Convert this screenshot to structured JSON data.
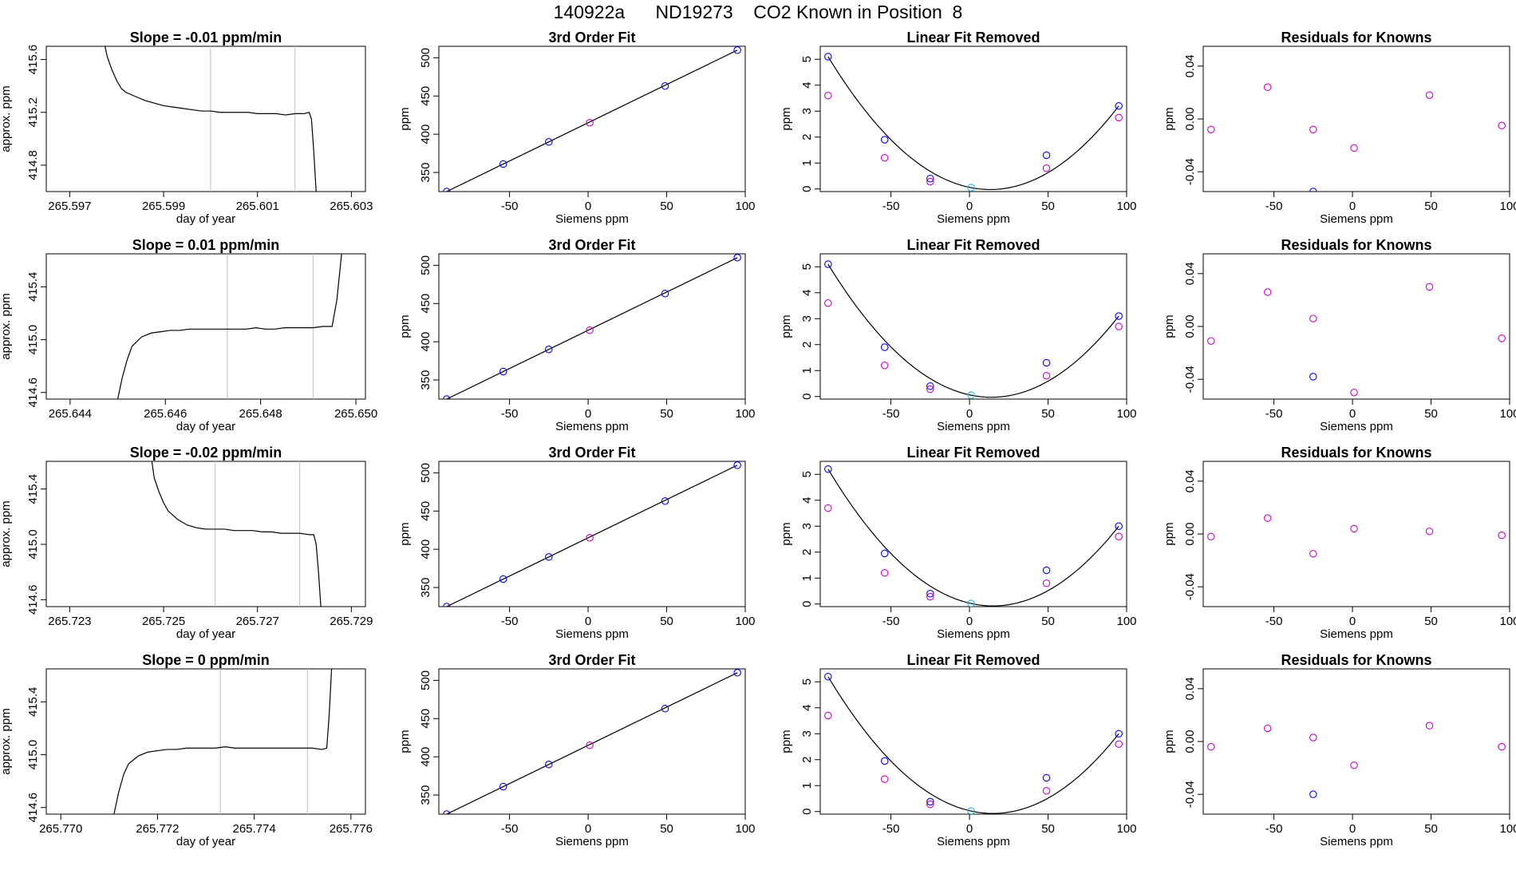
{
  "header": {
    "title": "140922a      ND19273    CO2 Known in Position  8"
  },
  "colors": {
    "blue": "#0000ff",
    "magenta": "#cc00cc",
    "cyan": "#1fb8e0",
    "red": "#ff0000",
    "line": "#000000",
    "vline": "#bebebe"
  },
  "chart_data": [
    {
      "id": "r1-trace",
      "type": "line",
      "title": "Slope =  -0.01  ppm/min",
      "xlabel": "day of year",
      "ylabel": "approx. ppm",
      "xlim": [
        265.5965,
        265.6033
      ],
      "ylim": [
        414.6,
        415.7
      ],
      "xticks": [
        265.597,
        265.599,
        265.601,
        265.603
      ],
      "xtick_labels": [
        "265.597",
        "265.599",
        "265.601",
        "265.603"
      ],
      "yticks": [
        414.8,
        415.2,
        415.6
      ],
      "ytick_labels": [
        "414.8",
        "415.2",
        "415.6"
      ],
      "vlines": [
        265.6,
        265.6018
      ],
      "x": [
        265.59775,
        265.5978,
        265.5979,
        265.598,
        265.5981,
        265.5982,
        265.5984,
        265.5986,
        265.5988,
        265.599,
        265.5992,
        265.5994,
        265.5996,
        265.5998,
        265.6,
        265.6002,
        265.6004,
        265.6006,
        265.6008,
        265.601,
        265.6012,
        265.6014,
        265.6016,
        265.6018,
        265.602,
        265.6021,
        265.60215,
        265.6022,
        265.60225
      ],
      "y": [
        415.7,
        415.62,
        415.52,
        415.44,
        415.38,
        415.35,
        415.32,
        415.29,
        415.27,
        415.25,
        415.24,
        415.23,
        415.22,
        415.21,
        415.21,
        415.2,
        415.2,
        415.2,
        415.2,
        415.19,
        415.19,
        415.19,
        415.18,
        415.19,
        415.19,
        415.2,
        415.15,
        414.9,
        414.6
      ]
    },
    {
      "id": "r1-fit",
      "type": "scatter",
      "title": "3rd Order Fit",
      "xlabel": "Siemens ppm",
      "ylabel": "ppm",
      "xlim": [
        -95,
        100
      ],
      "ylim": [
        325,
        515
      ],
      "xticks": [
        -50,
        0,
        50,
        100
      ],
      "xtick_labels": [
        "-50",
        "0",
        "50",
        "100"
      ],
      "yticks": [
        350,
        400,
        450,
        500
      ],
      "ytick_labels": [
        "350",
        "400",
        "450",
        "500"
      ],
      "x": [
        -90,
        -54,
        -25,
        1,
        49,
        95
      ],
      "y": [
        325,
        361,
        390,
        415,
        463,
        510
      ],
      "colors": [
        "blue",
        "blue",
        "blue",
        "magenta",
        "blue",
        "blue"
      ],
      "fit_line": true
    },
    {
      "id": "r1-linear",
      "type": "scatter",
      "title": "Linear Fit Removed",
      "xlabel": "Siemens ppm",
      "ylabel": "ppm",
      "xlim": [
        -95,
        100
      ],
      "ylim": [
        -0.1,
        5.5
      ],
      "xticks": [
        -50,
        0,
        50,
        100
      ],
      "xtick_labels": [
        "-50",
        "0",
        "50",
        "100"
      ],
      "yticks": [
        0,
        1,
        2,
        3,
        4,
        5
      ],
      "ytick_labels": [
        "0",
        "1",
        "2",
        "3",
        "4",
        "5"
      ],
      "x": [
        -90,
        -54,
        -25,
        1,
        49,
        95,
        -90,
        -54,
        -25,
        49,
        95
      ],
      "y": [
        5.1,
        1.9,
        0.4,
        0.05,
        1.3,
        3.2,
        3.6,
        1.2,
        0.28,
        0.8,
        2.75
      ],
      "colors": [
        "blue",
        "blue",
        "blue",
        "cyan",
        "blue",
        "blue",
        "magenta",
        "magenta",
        "magenta",
        "magenta",
        "magenta"
      ],
      "curve": true
    },
    {
      "id": "r1-resid",
      "type": "scatter",
      "title": "Residuals for Knowns",
      "xlabel": "Siemens ppm",
      "ylabel": "ppm",
      "xlim": [
        -95,
        100
      ],
      "ylim": [
        -0.055,
        0.055
      ],
      "xticks": [
        -50,
        0,
        50,
        100
      ],
      "xtick_labels": [
        "-50",
        "0",
        "50",
        "100"
      ],
      "yticks": [
        -0.04,
        0,
        0.04
      ],
      "ytick_labels": [
        "-0.04",
        "0.00",
        "0.04"
      ],
      "x": [
        -90,
        -54,
        -25,
        -25,
        1,
        49,
        95
      ],
      "y": [
        -0.008,
        0.024,
        -0.008,
        -0.055,
        -0.022,
        0.018,
        -0.005
      ],
      "colors": [
        "magenta",
        "magenta",
        "magenta",
        "blue",
        "magenta",
        "magenta",
        "magenta"
      ]
    },
    {
      "id": "r2-trace",
      "type": "line",
      "title": "Slope =  0.01  ppm/min",
      "xlabel": "day of year",
      "ylabel": "approx. ppm",
      "xlim": [
        265.6435,
        265.6502
      ],
      "ylim": [
        414.55,
        415.65
      ],
      "xticks": [
        265.644,
        265.646,
        265.648,
        265.65
      ],
      "xtick_labels": [
        "265.644",
        "265.646",
        "265.648",
        "265.650"
      ],
      "yticks": [
        414.6,
        415.0,
        415.4
      ],
      "ytick_labels": [
        "414.6",
        "415.0",
        "415.4"
      ],
      "vlines": [
        265.6473,
        265.6491
      ],
      "x": [
        265.645,
        265.6451,
        265.6452,
        265.6453,
        265.6455,
        265.6457,
        265.6459,
        265.6461,
        265.6463,
        265.6465,
        265.6467,
        265.6469,
        265.6471,
        265.6473,
        265.6475,
        265.6477,
        265.6479,
        265.6481,
        265.6483,
        265.6485,
        265.6487,
        265.6489,
        265.6491,
        265.6493,
        265.6495,
        265.6496,
        265.6497
      ],
      "y": [
        414.55,
        414.72,
        414.85,
        414.95,
        415.02,
        415.05,
        415.06,
        415.07,
        415.07,
        415.08,
        415.08,
        415.08,
        415.08,
        415.08,
        415.08,
        415.08,
        415.09,
        415.08,
        415.08,
        415.09,
        415.09,
        415.09,
        415.09,
        415.1,
        415.1,
        415.3,
        415.65
      ]
    },
    {
      "id": "r2-fit",
      "type": "scatter",
      "title": "3rd Order Fit",
      "xlabel": "Siemens ppm",
      "ylabel": "ppm",
      "xlim": [
        -95,
        100
      ],
      "ylim": [
        325,
        515
      ],
      "xticks": [
        -50,
        0,
        50,
        100
      ],
      "xtick_labels": [
        "-50",
        "0",
        "50",
        "100"
      ],
      "yticks": [
        350,
        400,
        450,
        500
      ],
      "ytick_labels": [
        "350",
        "400",
        "450",
        "500"
      ],
      "x": [
        -90,
        -54,
        -25,
        1,
        49,
        95
      ],
      "y": [
        325,
        361,
        390,
        415,
        463,
        510
      ],
      "colors": [
        "blue",
        "blue",
        "blue",
        "magenta",
        "blue",
        "blue"
      ],
      "fit_line": true
    },
    {
      "id": "r2-linear",
      "type": "scatter",
      "title": "Linear Fit Removed",
      "xlabel": "Siemens ppm",
      "ylabel": "ppm",
      "xlim": [
        -95,
        100
      ],
      "ylim": [
        -0.1,
        5.5
      ],
      "xticks": [
        -50,
        0,
        50,
        100
      ],
      "xtick_labels": [
        "-50",
        "0",
        "50",
        "100"
      ],
      "yticks": [
        0,
        1,
        2,
        3,
        4,
        5
      ],
      "ytick_labels": [
        "0",
        "1",
        "2",
        "3",
        "4",
        "5"
      ],
      "x": [
        -90,
        -54,
        -25,
        1,
        49,
        95,
        -90,
        -54,
        -25,
        49,
        95
      ],
      "y": [
        5.1,
        1.9,
        0.4,
        0.05,
        1.3,
        3.1,
        3.6,
        1.2,
        0.28,
        0.8,
        2.7
      ],
      "colors": [
        "blue",
        "blue",
        "blue",
        "cyan",
        "blue",
        "blue",
        "magenta",
        "magenta",
        "magenta",
        "magenta",
        "magenta"
      ],
      "curve": true
    },
    {
      "id": "r2-resid",
      "type": "scatter",
      "title": "Residuals for Knowns",
      "xlabel": "Siemens ppm",
      "ylabel": "ppm",
      "xlim": [
        -95,
        100
      ],
      "ylim": [
        -0.055,
        0.055
      ],
      "xticks": [
        -50,
        0,
        50,
        100
      ],
      "xtick_labels": [
        "-50",
        "0",
        "50",
        "100"
      ],
      "yticks": [
        -0.04,
        0,
        0.04
      ],
      "ytick_labels": [
        "-0.04",
        "0.00",
        "0.04"
      ],
      "x": [
        -90,
        -54,
        -25,
        -25,
        1,
        49,
        95
      ],
      "y": [
        -0.011,
        0.026,
        0.006,
        -0.038,
        -0.05,
        0.03,
        -0.009
      ],
      "colors": [
        "magenta",
        "magenta",
        "magenta",
        "blue",
        "magenta",
        "magenta",
        "magenta"
      ]
    },
    {
      "id": "r3-trace",
      "type": "line",
      "title": "Slope =  -0.02  ppm/min",
      "xlabel": "day of year",
      "ylabel": "approx. ppm",
      "xlim": [
        265.7225,
        265.7293
      ],
      "ylim": [
        414.55,
        415.6
      ],
      "xticks": [
        265.723,
        265.725,
        265.727,
        265.729
      ],
      "xtick_labels": [
        "265.723",
        "265.725",
        "265.727",
        "265.729"
      ],
      "yticks": [
        414.6,
        415.0,
        415.4
      ],
      "ytick_labels": [
        "414.6",
        "415.0",
        "415.4"
      ],
      "vlines": [
        265.7261,
        265.7279
      ],
      "x": [
        265.72475,
        265.7248,
        265.7249,
        265.725,
        265.7251,
        265.7253,
        265.7255,
        265.7257,
        265.7259,
        265.7261,
        265.7263,
        265.7265,
        265.7267,
        265.7269,
        265.7271,
        265.7273,
        265.7275,
        265.7277,
        265.7279,
        265.7281,
        265.7282,
        265.72825,
        265.7283,
        265.72835
      ],
      "y": [
        415.6,
        415.48,
        415.38,
        415.3,
        415.24,
        415.18,
        415.14,
        415.12,
        415.11,
        415.11,
        415.11,
        415.1,
        415.1,
        415.1,
        415.09,
        415.09,
        415.08,
        415.08,
        415.08,
        415.07,
        415.07,
        415.0,
        414.8,
        414.55
      ]
    },
    {
      "id": "r3-fit",
      "type": "scatter",
      "title": "3rd Order Fit",
      "xlabel": "Siemens ppm",
      "ylabel": "ppm",
      "xlim": [
        -95,
        100
      ],
      "ylim": [
        325,
        515
      ],
      "xticks": [
        -50,
        0,
        50,
        100
      ],
      "xtick_labels": [
        "-50",
        "0",
        "50",
        "100"
      ],
      "yticks": [
        350,
        400,
        450,
        500
      ],
      "ytick_labels": [
        "350",
        "400",
        "450",
        "500"
      ],
      "x": [
        -90,
        -54,
        -25,
        1,
        49,
        95
      ],
      "y": [
        325,
        361,
        390,
        415,
        463,
        510
      ],
      "colors": [
        "blue",
        "blue",
        "blue",
        "magenta",
        "blue",
        "blue"
      ],
      "fit_line": true
    },
    {
      "id": "r3-linear",
      "type": "scatter",
      "title": "Linear Fit Removed",
      "xlabel": "Siemens ppm",
      "ylabel": "ppm",
      "xlim": [
        -95,
        100
      ],
      "ylim": [
        -0.1,
        5.5
      ],
      "xticks": [
        -50,
        0,
        50,
        100
      ],
      "xtick_labels": [
        "-50",
        "0",
        "50",
        "100"
      ],
      "yticks": [
        0,
        1,
        2,
        3,
        4,
        5
      ],
      "ytick_labels": [
        "0",
        "1",
        "2",
        "3",
        "4",
        "5"
      ],
      "x": [
        -90,
        -54,
        -25,
        1,
        49,
        95,
        -90,
        -54,
        -25,
        49,
        95
      ],
      "y": [
        5.2,
        1.95,
        0.4,
        0.02,
        1.3,
        3.0,
        3.7,
        1.2,
        0.28,
        0.8,
        2.6
      ],
      "colors": [
        "blue",
        "blue",
        "blue",
        "cyan",
        "blue",
        "blue",
        "magenta",
        "magenta",
        "magenta",
        "magenta",
        "magenta"
      ],
      "curve": true
    },
    {
      "id": "r3-resid",
      "type": "scatter",
      "title": "Residuals for Knowns",
      "xlabel": "Siemens ppm",
      "ylabel": "ppm",
      "xlim": [
        -95,
        100
      ],
      "ylim": [
        -0.055,
        0.055
      ],
      "xticks": [
        -50,
        0,
        50,
        100
      ],
      "xtick_labels": [
        "-50",
        "0",
        "50",
        "100"
      ],
      "yticks": [
        -0.04,
        0,
        0.04
      ],
      "ytick_labels": [
        "-0.04",
        "0.00",
        "0.04"
      ],
      "x": [
        -90,
        -54,
        -25,
        1,
        49,
        95
      ],
      "y": [
        -0.002,
        0.012,
        -0.015,
        0.004,
        0.002,
        -0.001
      ],
      "colors": [
        "magenta",
        "magenta",
        "magenta",
        "magenta",
        "magenta",
        "magenta"
      ]
    },
    {
      "id": "r4-trace",
      "type": "line",
      "title": "Slope =  0  ppm/min",
      "xlabel": "day of year",
      "ylabel": "approx. ppm",
      "xlim": [
        265.7697,
        265.7763
      ],
      "ylim": [
        414.55,
        415.65
      ],
      "xticks": [
        265.77,
        265.772,
        265.774,
        265.776
      ],
      "xtick_labels": [
        "265.770",
        "265.772",
        "265.774",
        "265.776"
      ],
      "yticks": [
        414.6,
        415.0,
        415.4
      ],
      "ytick_labels": [
        "414.6",
        "415.0",
        "415.4"
      ],
      "vlines": [
        265.7733,
        265.7751
      ],
      "x": [
        265.7711,
        265.7712,
        265.7713,
        265.7714,
        265.7716,
        265.7718,
        265.772,
        265.7722,
        265.7724,
        265.7726,
        265.7728,
        265.773,
        265.7732,
        265.7734,
        265.7736,
        265.7738,
        265.774,
        265.7742,
        265.7744,
        265.7746,
        265.7748,
        265.775,
        265.7752,
        265.7754,
        265.7755,
        265.77555,
        265.7756
      ],
      "y": [
        414.55,
        414.72,
        414.85,
        414.93,
        414.99,
        415.02,
        415.03,
        415.04,
        415.04,
        415.05,
        415.05,
        415.05,
        415.05,
        415.06,
        415.05,
        415.05,
        415.05,
        415.05,
        415.05,
        415.05,
        415.05,
        415.05,
        415.05,
        415.04,
        415.05,
        415.3,
        415.65
      ]
    },
    {
      "id": "r4-fit",
      "type": "scatter",
      "title": "3rd Order Fit",
      "xlabel": "Siemens ppm",
      "ylabel": "ppm",
      "xlim": [
        -95,
        100
      ],
      "ylim": [
        325,
        515
      ],
      "xticks": [
        -50,
        0,
        50,
        100
      ],
      "xtick_labels": [
        "-50",
        "0",
        "50",
        "100"
      ],
      "yticks": [
        350,
        400,
        450,
        500
      ],
      "ytick_labels": [
        "350",
        "400",
        "450",
        "500"
      ],
      "x": [
        -90,
        -54,
        -25,
        1,
        49,
        95
      ],
      "y": [
        325,
        361,
        390,
        415,
        463,
        510
      ],
      "colors": [
        "blue",
        "blue",
        "blue",
        "magenta",
        "blue",
        "blue"
      ],
      "fit_line": true
    },
    {
      "id": "r4-linear",
      "type": "scatter",
      "title": "Linear Fit Removed",
      "xlabel": "Siemens ppm",
      "ylabel": "ppm",
      "xlim": [
        -95,
        100
      ],
      "ylim": [
        -0.1,
        5.5
      ],
      "xticks": [
        -50,
        0,
        50,
        100
      ],
      "xtick_labels": [
        "-50",
        "0",
        "50",
        "100"
      ],
      "yticks": [
        0,
        1,
        2,
        3,
        4,
        5
      ],
      "ytick_labels": [
        "0",
        "1",
        "2",
        "3",
        "4",
        "5"
      ],
      "x": [
        -90,
        -54,
        -25,
        1,
        49,
        95,
        -90,
        -54,
        -25,
        49,
        95
      ],
      "y": [
        5.2,
        1.95,
        0.38,
        0.02,
        1.3,
        3.0,
        3.7,
        1.25,
        0.28,
        0.8,
        2.6
      ],
      "colors": [
        "blue",
        "blue",
        "blue",
        "cyan",
        "blue",
        "blue",
        "magenta",
        "magenta",
        "magenta",
        "magenta",
        "magenta"
      ],
      "curve": true
    },
    {
      "id": "r4-resid",
      "type": "scatter",
      "title": "Residuals for Knowns",
      "xlabel": "Siemens ppm",
      "ylabel": "ppm",
      "xlim": [
        -95,
        100
      ],
      "ylim": [
        -0.055,
        0.055
      ],
      "xticks": [
        -50,
        0,
        50,
        100
      ],
      "xtick_labels": [
        "-50",
        "0",
        "50",
        "100"
      ],
      "yticks": [
        -0.04,
        0,
        0.04
      ],
      "ytick_labels": [
        "-0.04",
        "0.00",
        "0.04"
      ],
      "x": [
        -90,
        -54,
        -25,
        -25,
        1,
        49,
        95
      ],
      "y": [
        -0.004,
        0.01,
        0.003,
        -0.04,
        -0.018,
        0.012,
        -0.004
      ],
      "colors": [
        "magenta",
        "magenta",
        "magenta",
        "blue",
        "magenta",
        "magenta",
        "magenta"
      ]
    }
  ]
}
